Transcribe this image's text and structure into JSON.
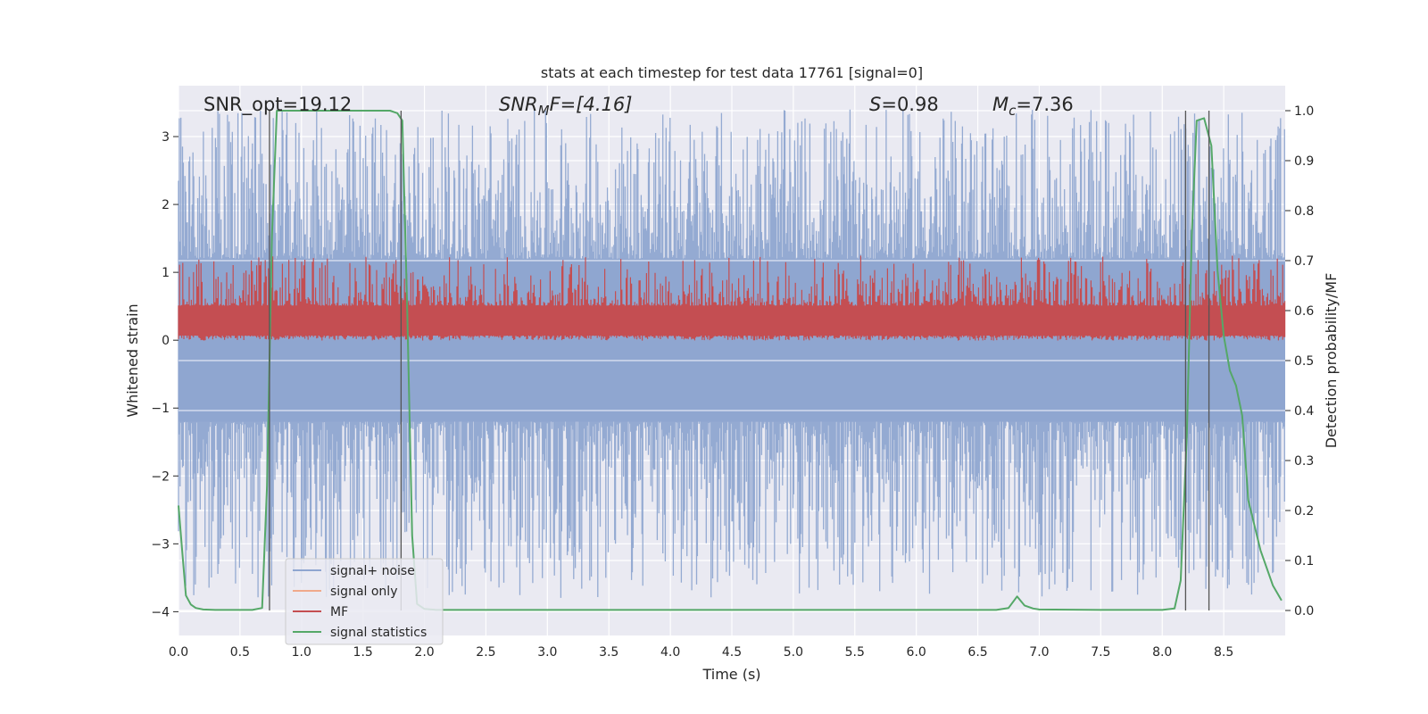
{
  "chart_data": {
    "type": "line",
    "title": "stats at each timestep for test data 17761 [signal=0]",
    "xlabel": "Time (s)",
    "ylabel": "Whitened strain",
    "y2label": "Detection probability/MF",
    "xlim": [
      0,
      9.0
    ],
    "ylim": [
      -4.35,
      3.75
    ],
    "y2lim": [
      -0.05,
      1.05
    ],
    "xticks": [
      "0.0",
      "0.5",
      "1.0",
      "1.5",
      "2.0",
      "2.5",
      "3.0",
      "3.5",
      "4.0",
      "4.5",
      "5.0",
      "5.5",
      "6.0",
      "6.5",
      "7.0",
      "7.5",
      "8.0",
      "8.5"
    ],
    "yticks": [
      "−4",
      "−3",
      "−2",
      "−1",
      "0",
      "1",
      "2",
      "3"
    ],
    "y2ticks": [
      "0.0",
      "0.1",
      "0.2",
      "0.3",
      "0.4",
      "0.5",
      "0.6",
      "0.7",
      "0.8",
      "0.9",
      "1.0"
    ],
    "grid": true,
    "legend_position": "lower-left",
    "annotations": {
      "snr_opt": "SNR_opt=19.12",
      "snr_mf_sym": "SNR",
      "snr_mf_sub": "M",
      "snr_mf_rest": "F=[4.16]",
      "s_sym": "S",
      "s_rest": "=0.98",
      "mc_sym": "M",
      "mc_sub": "c",
      "mc_rest": "=7.36"
    },
    "vlines_x": [
      0.74,
      1.81,
      8.19,
      8.38
    ],
    "series": [
      {
        "name": "signal+ noise",
        "color": "#8fa6d0",
        "axis": "left",
        "noise_band": {
          "mean": 0.0,
          "core_range": [
            -1.2,
            1.2
          ],
          "peak_range": [
            -3.8,
            3.4
          ]
        }
      },
      {
        "name": "signal only",
        "color": "#f0a98b",
        "axis": "left",
        "values": []
      },
      {
        "name": "MF",
        "color": "#c44e52",
        "axis": "right",
        "noise_band": {
          "mean": 0.57,
          "core_range": [
            0.55,
            0.61
          ],
          "peak_range": [
            0.54,
            0.71
          ]
        }
      },
      {
        "name": "signal statistics",
        "color": "#55a868",
        "axis": "right",
        "x": [
          0.0,
          0.03,
          0.06,
          0.1,
          0.14,
          0.2,
          0.3,
          0.4,
          0.5,
          0.6,
          0.68,
          0.72,
          0.76,
          0.8,
          0.85,
          1.0,
          1.5,
          1.72,
          1.78,
          1.82,
          1.86,
          1.9,
          1.94,
          2.0,
          2.1,
          3.0,
          4.0,
          5.0,
          6.0,
          6.65,
          6.75,
          6.82,
          6.88,
          6.95,
          7.0,
          7.5,
          8.0,
          8.1,
          8.15,
          8.2,
          8.24,
          8.28,
          8.34,
          8.4,
          8.45,
          8.5,
          8.55,
          8.6,
          8.65,
          8.7,
          8.8,
          8.9,
          8.97
        ],
        "y": [
          0.21,
          0.12,
          0.03,
          0.012,
          0.005,
          0.002,
          0.001,
          0.001,
          0.001,
          0.001,
          0.005,
          0.25,
          0.75,
          1.0,
          1.0,
          1.0,
          1.0,
          1.0,
          0.995,
          0.98,
          0.6,
          0.15,
          0.013,
          0.003,
          0.001,
          0.001,
          0.001,
          0.001,
          0.001,
          0.001,
          0.005,
          0.028,
          0.01,
          0.004,
          0.002,
          0.001,
          0.001,
          0.004,
          0.06,
          0.35,
          0.75,
          0.98,
          0.985,
          0.93,
          0.68,
          0.55,
          0.48,
          0.45,
          0.39,
          0.22,
          0.12,
          0.05,
          0.02
        ]
      }
    ]
  }
}
